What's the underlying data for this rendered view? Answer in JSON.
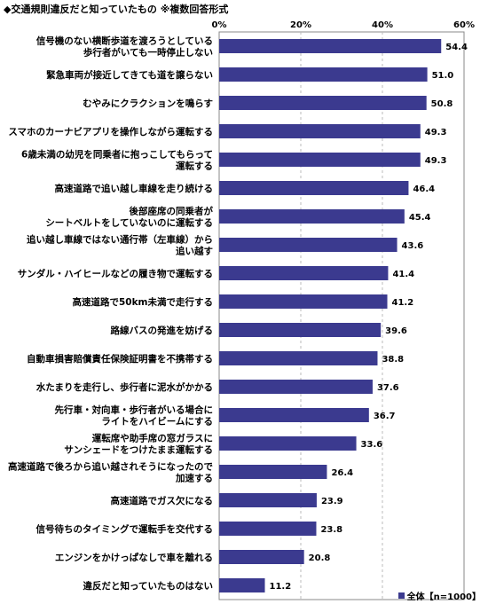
{
  "title": "◆交通規則違反だと知っていたもの ※複数回答形式",
  "legend_label": "全体【n=1000】",
  "bar_color": "#3b3a8f",
  "chart_data": {
    "type": "bar",
    "orientation": "horizontal",
    "xlim": [
      0,
      60
    ],
    "ticks": [
      "0%",
      "20%",
      "40%",
      "60%"
    ],
    "grid": true,
    "legend_position": "bottom-right",
    "categories": [
      [
        "信号機のない横断歩道を渡ろうとしている",
        "歩行者がいても一時停止しない"
      ],
      [
        "緊急車両が接近してきても道を譲らない"
      ],
      [
        "むやみにクラクションを鳴らす"
      ],
      [
        "スマホのカーナビアプリを操作しながら運転する"
      ],
      [
        "6歳未満の幼児を同乗者に抱っこしてもらって",
        "運転する"
      ],
      [
        "高速道路で追い越し車線を走り続ける"
      ],
      [
        "後部座席の同乗者が",
        "シートベルトをしていないのに運転する"
      ],
      [
        "追い越し車線ではない通行帯（左車線）から",
        "追い越す"
      ],
      [
        "サンダル・ハイヒールなどの履き物で運転する"
      ],
      [
        "高速道路で50km未満で走行する"
      ],
      [
        "路線バスの発進を妨げる"
      ],
      [
        "自動車損害賠償責任保険証明書を不携帯する"
      ],
      [
        "水たまりを走行し、歩行者に泥水がかかる"
      ],
      [
        "先行車・対向車・歩行者がいる場合に",
        "ライトをハイビームにする"
      ],
      [
        "運転席や助手席の窓ガラスに",
        "サンシェードをつけたまま運転する"
      ],
      [
        "高速道路で後ろから追い越されそうになったので",
        "加速する"
      ],
      [
        "高速道路でガス欠になる"
      ],
      [
        "信号待ちのタイミングで運転手を交代する"
      ],
      [
        "エンジンをかけっぱなしで車を離れる"
      ],
      [
        "違反だと知っていたものはない"
      ]
    ],
    "values": [
      54.4,
      51.0,
      50.8,
      49.3,
      49.3,
      46.4,
      45.4,
      43.6,
      41.4,
      41.2,
      39.6,
      38.8,
      37.6,
      36.7,
      33.6,
      26.4,
      23.9,
      23.8,
      20.8,
      11.2
    ],
    "value_labels": [
      "54.4",
      "51.0",
      "50.8",
      "49.3",
      "49.3",
      "46.4",
      "45.4",
      "43.6",
      "41.4",
      "41.2",
      "39.6",
      "38.8",
      "37.6",
      "36.7",
      "33.6",
      "26.4",
      "23.9",
      "23.8",
      "20.8",
      "11.2"
    ],
    "series": [
      {
        "name": "全体【n=1000】"
      }
    ]
  }
}
